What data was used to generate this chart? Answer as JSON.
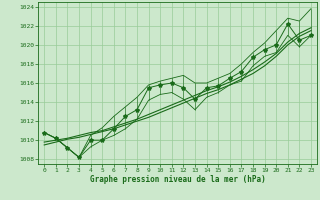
{
  "x": [
    0,
    1,
    2,
    3,
    4,
    5,
    6,
    7,
    8,
    9,
    10,
    11,
    12,
    13,
    14,
    15,
    16,
    17,
    18,
    19,
    20,
    21,
    22,
    23
  ],
  "y_main": [
    1010.8,
    1010.2,
    1009.2,
    1008.2,
    1010.0,
    1010.0,
    1011.2,
    1012.5,
    1013.2,
    1015.5,
    1015.8,
    1016.0,
    1015.5,
    1014.3,
    1015.5,
    1015.7,
    1016.5,
    1017.2,
    1018.7,
    1019.5,
    1020.0,
    1022.2,
    1020.5,
    1021.0
  ],
  "y_high": [
    1010.8,
    1010.2,
    1009.2,
    1008.2,
    1010.5,
    1011.3,
    1012.5,
    1013.5,
    1014.5,
    1015.8,
    1016.2,
    1016.5,
    1016.8,
    1016.0,
    1016.0,
    1016.5,
    1017.0,
    1018.0,
    1019.2,
    1020.2,
    1021.5,
    1022.8,
    1022.5,
    1023.8
  ],
  "y_low": [
    1010.8,
    1010.2,
    1009.2,
    1008.2,
    1009.3,
    1010.0,
    1010.5,
    1011.2,
    1012.2,
    1014.2,
    1014.8,
    1015.0,
    1014.3,
    1013.2,
    1014.5,
    1015.0,
    1015.8,
    1016.2,
    1017.8,
    1018.8,
    1019.2,
    1021.0,
    1019.8,
    1021.0
  ],
  "y_trend1": [
    1009.5,
    1009.8,
    1010.1,
    1010.3,
    1010.6,
    1010.9,
    1011.2,
    1011.6,
    1012.0,
    1012.4,
    1012.9,
    1013.4,
    1013.9,
    1014.4,
    1014.9,
    1015.3,
    1015.8,
    1016.4,
    1017.0,
    1017.8,
    1018.8,
    1020.0,
    1020.9,
    1021.5
  ],
  "y_trend2": [
    1009.8,
    1010.0,
    1010.2,
    1010.5,
    1010.8,
    1011.0,
    1011.4,
    1011.8,
    1012.2,
    1012.7,
    1013.2,
    1013.7,
    1014.2,
    1014.7,
    1015.2,
    1015.6,
    1016.1,
    1016.7,
    1017.4,
    1018.2,
    1019.1,
    1020.3,
    1021.2,
    1021.8
  ],
  "ylim": [
    1007.5,
    1024.5
  ],
  "yticks": [
    1008,
    1010,
    1012,
    1014,
    1016,
    1018,
    1020,
    1022,
    1024
  ],
  "xlim": [
    -0.5,
    23.5
  ],
  "xticks": [
    0,
    1,
    2,
    3,
    4,
    5,
    6,
    7,
    8,
    9,
    10,
    11,
    12,
    13,
    14,
    15,
    16,
    17,
    18,
    19,
    20,
    21,
    22,
    23
  ],
  "xlabel": "Graphe pression niveau de la mer (hPa)",
  "line_color": "#1a6b1a",
  "bg_color": "#cce8cc",
  "grid_color": "#99cc99"
}
